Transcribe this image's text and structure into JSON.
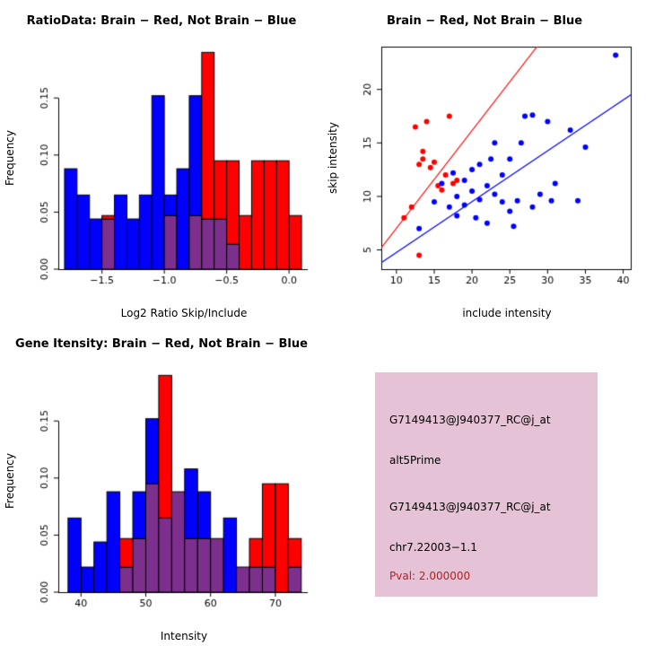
{
  "colors": {
    "red": "#FF0000",
    "blue": "#0000FF",
    "overlap": "#7D2F8E",
    "axis": "#000000",
    "info_bg": "#E5C2D5",
    "pval_red": "#B22222",
    "text": "#000000"
  },
  "info_box": {
    "lines": [
      {
        "text": "G7149413@J940377_RC@j_at",
        "color": "#000000"
      },
      {
        "text": "alt5Prime",
        "color": "#000000"
      },
      {
        "text": "G7149413@J940377_RC@j_at",
        "color": "#000000"
      },
      {
        "text": "chr7.22003−1.1",
        "color": "#000000"
      },
      {
        "text": "Pval: 2.000000",
        "color": "#B22222"
      }
    ]
  },
  "chart_data": [
    {
      "type": "bar",
      "name": "ratio_histogram",
      "title": "RatioData: Brain − Red, Not Brain − Blue",
      "xlabel": "Log2 Ratio Skip/Include",
      "ylabel": "Frequency",
      "xlim": [
        -1.85,
        0.15
      ],
      "ylim": [
        0,
        0.195
      ],
      "grid": false,
      "xticks": [
        {
          "v": -1.5,
          "label": "−1.5"
        },
        {
          "v": -1.0,
          "label": "−1.0"
        },
        {
          "v": -0.5,
          "label": "−0.5"
        },
        {
          "v": 0.0,
          "label": "0.0"
        }
      ],
      "yticks": [
        {
          "v": 0.0,
          "label": "0.00"
        },
        {
          "v": 0.05,
          "label": "0.05"
        },
        {
          "v": 0.1,
          "label": "0.10"
        },
        {
          "v": 0.15,
          "label": "0.15"
        }
      ],
      "bin_width": 0.1,
      "bins": [
        {
          "x": -1.8,
          "blue": 0.088,
          "red": 0
        },
        {
          "x": -1.7,
          "blue": 0.065,
          "red": 0
        },
        {
          "x": -1.6,
          "blue": 0.044,
          "red": 0
        },
        {
          "x": -1.5,
          "blue": 0.044,
          "red": 0.047
        },
        {
          "x": -1.4,
          "blue": 0.065,
          "red": 0
        },
        {
          "x": -1.3,
          "blue": 0.044,
          "red": 0
        },
        {
          "x": -1.2,
          "blue": 0.065,
          "red": 0
        },
        {
          "x": -1.1,
          "blue": 0.152,
          "red": 0
        },
        {
          "x": -1.0,
          "blue": 0.065,
          "red": 0.047
        },
        {
          "x": -0.9,
          "blue": 0.088,
          "red": 0
        },
        {
          "x": -0.8,
          "blue": 0.152,
          "red": 0.047
        },
        {
          "x": -0.7,
          "blue": 0.044,
          "red": 0.19
        },
        {
          "x": -0.6,
          "blue": 0.044,
          "red": 0.095
        },
        {
          "x": -0.5,
          "blue": 0.022,
          "red": 0.095
        },
        {
          "x": -0.4,
          "blue": 0,
          "red": 0.047
        },
        {
          "x": -0.3,
          "blue": 0,
          "red": 0.095
        },
        {
          "x": -0.2,
          "blue": 0,
          "red": 0.095
        },
        {
          "x": -0.1,
          "blue": 0,
          "red": 0.095
        },
        {
          "x": 0.0,
          "blue": 0,
          "red": 0.047
        }
      ]
    },
    {
      "type": "scatter",
      "name": "intensity_scatter",
      "title": "Brain − Red, Not Brain − Blue",
      "xlabel": "include intensity",
      "ylabel": "skip intensity",
      "xlim": [
        8,
        41
      ],
      "ylim": [
        3.2,
        24
      ],
      "grid": false,
      "xticks": [
        {
          "v": 10,
          "label": "10"
        },
        {
          "v": 15,
          "label": "15"
        },
        {
          "v": 20,
          "label": "20"
        },
        {
          "v": 25,
          "label": "25"
        },
        {
          "v": 30,
          "label": "30"
        },
        {
          "v": 35,
          "label": "35"
        },
        {
          "v": 40,
          "label": "40"
        }
      ],
      "yticks": [
        {
          "v": 5,
          "label": "5"
        },
        {
          "v": 10,
          "label": "10"
        },
        {
          "v": 15,
          "label": "15"
        },
        {
          "v": 20,
          "label": "20"
        }
      ],
      "series": [
        {
          "name": "Brain",
          "color_key": "red",
          "points": [
            [
              11,
              8
            ],
            [
              12,
              9
            ],
            [
              12.5,
              16.5
            ],
            [
              13,
              4.5
            ],
            [
              13,
              13
            ],
            [
              13.5,
              13.5
            ],
            [
              13.5,
              14.2
            ],
            [
              14,
              17
            ],
            [
              14.5,
              12.7
            ],
            [
              15,
              13.2
            ],
            [
              15.5,
              11
            ],
            [
              16,
              10.6
            ],
            [
              16.5,
              12
            ],
            [
              17,
              17.5
            ],
            [
              17.5,
              11.2
            ],
            [
              18,
              11.5
            ]
          ]
        },
        {
          "name": "Not Brain",
          "color_key": "blue",
          "points": [
            [
              13,
              7
            ],
            [
              15,
              9.5
            ],
            [
              16,
              11.2
            ],
            [
              17,
              9
            ],
            [
              17.5,
              12.2
            ],
            [
              18,
              10
            ],
            [
              18,
              8.2
            ],
            [
              19,
              11.5
            ],
            [
              19,
              9.2
            ],
            [
              20,
              12.5
            ],
            [
              20,
              10.5
            ],
            [
              20.5,
              8
            ],
            [
              21,
              13
            ],
            [
              21,
              9.7
            ],
            [
              22,
              11
            ],
            [
              22,
              7.5
            ],
            [
              22.5,
              13.5
            ],
            [
              23,
              15
            ],
            [
              23,
              10.2
            ],
            [
              24,
              12
            ],
            [
              24,
              9.5
            ],
            [
              25,
              13.5
            ],
            [
              25,
              8.6
            ],
            [
              25.5,
              7.2
            ],
            [
              26,
              9.6
            ],
            [
              26.5,
              15
            ],
            [
              27,
              17.5
            ],
            [
              28,
              17.6
            ],
            [
              28,
              9
            ],
            [
              29,
              10.2
            ],
            [
              30,
              17
            ],
            [
              30.5,
              9.6
            ],
            [
              31,
              11.2
            ],
            [
              33,
              16.2
            ],
            [
              34,
              9.6
            ],
            [
              35,
              14.6
            ],
            [
              39,
              23.2
            ]
          ]
        }
      ],
      "lines": [
        {
          "name": "brain-fit-line",
          "color_key": "red",
          "x1": 8,
          "y1": 5.2,
          "x2": 28.6,
          "y2": 24
        },
        {
          "name": "not-brain-fit-line",
          "color_key": "blue",
          "x1": 8,
          "y1": 3.8,
          "x2": 41,
          "y2": 19.5
        }
      ]
    },
    {
      "type": "bar",
      "name": "gene_intensity_histogram",
      "title": "Gene Itensity: Brain − Red, Not Brain − Blue",
      "xlabel": "Intensity",
      "ylabel": "Frequency",
      "xlim": [
        36.5,
        75
      ],
      "ylim": [
        0,
        0.195
      ],
      "grid": false,
      "xticks": [
        {
          "v": 40,
          "label": "40"
        },
        {
          "v": 50,
          "label": "50"
        },
        {
          "v": 60,
          "label": "60"
        },
        {
          "v": 70,
          "label": "70"
        }
      ],
      "yticks": [
        {
          "v": 0.0,
          "label": "0.00"
        },
        {
          "v": 0.05,
          "label": "0.05"
        },
        {
          "v": 0.1,
          "label": "0.10"
        },
        {
          "v": 0.15,
          "label": "0.15"
        }
      ],
      "bin_width": 2,
      "bins": [
        {
          "x": 38,
          "blue": 0.065,
          "red": 0
        },
        {
          "x": 40,
          "blue": 0.022,
          "red": 0
        },
        {
          "x": 42,
          "blue": 0.044,
          "red": 0
        },
        {
          "x": 44,
          "blue": 0.088,
          "red": 0
        },
        {
          "x": 46,
          "blue": 0.022,
          "red": 0.047
        },
        {
          "x": 48,
          "blue": 0.088,
          "red": 0.047
        },
        {
          "x": 50,
          "blue": 0.152,
          "red": 0.095
        },
        {
          "x": 52,
          "blue": 0.065,
          "red": 0.19
        },
        {
          "x": 54,
          "blue": 0.088,
          "red": 0.088
        },
        {
          "x": 56,
          "blue": 0.108,
          "red": 0.047
        },
        {
          "x": 58,
          "blue": 0.088,
          "red": 0.047
        },
        {
          "x": 60,
          "blue": 0.047,
          "red": 0.047
        },
        {
          "x": 62,
          "blue": 0.065,
          "red": 0
        },
        {
          "x": 64,
          "blue": 0.022,
          "red": 0.022
        },
        {
          "x": 66,
          "blue": 0.022,
          "red": 0.047
        },
        {
          "x": 68,
          "blue": 0.022,
          "red": 0.095
        },
        {
          "x": 70,
          "blue": 0,
          "red": 0.095
        },
        {
          "x": 72,
          "blue": 0.022,
          "red": 0.047
        }
      ]
    }
  ]
}
